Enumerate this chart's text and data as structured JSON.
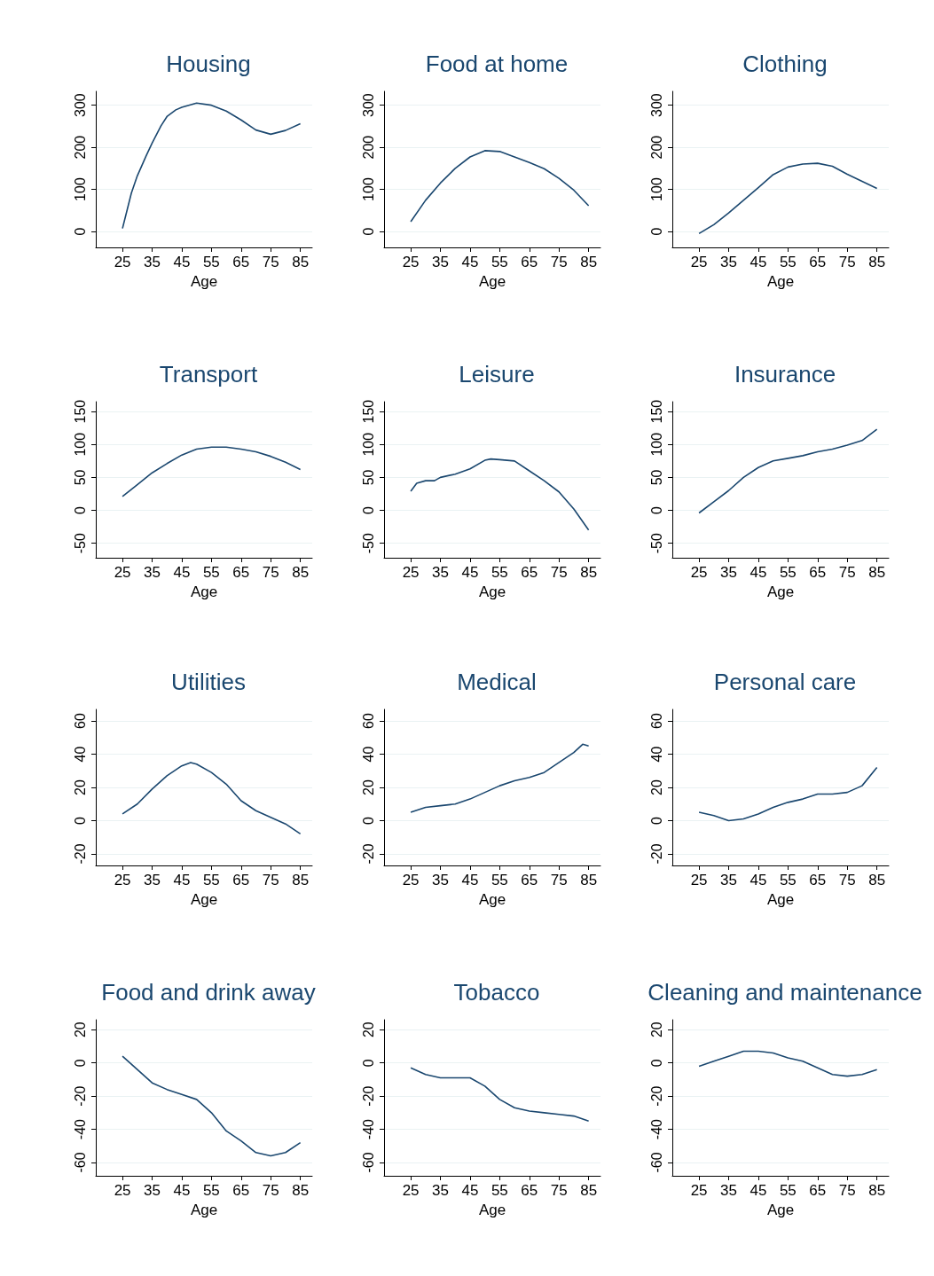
{
  "chart_data": [
    {
      "type": "line",
      "title": "Housing",
      "xlabel": "Age",
      "color": "#1a476f",
      "grid": "y",
      "x": [
        25,
        28,
        30,
        33,
        35,
        38,
        40,
        43,
        45,
        50,
        55,
        60,
        65,
        70,
        75,
        80,
        85
      ],
      "values": [
        7,
        91,
        132,
        180,
        210,
        251,
        273,
        289,
        295,
        305,
        300,
        286,
        265,
        241,
        231,
        240,
        256
      ],
      "xlim": [
        16,
        89
      ],
      "xticks": [
        25,
        35,
        45,
        55,
        65,
        75,
        85
      ],
      "ylim": [
        -38,
        333
      ],
      "yticks": [
        0,
        100,
        200,
        300
      ]
    },
    {
      "type": "line",
      "title": "Food at home",
      "xlabel": "Age",
      "color": "#1a476f",
      "grid": "y",
      "x": [
        25,
        30,
        35,
        40,
        45,
        50,
        55,
        60,
        65,
        70,
        75,
        80,
        85
      ],
      "values": [
        23,
        74,
        115,
        150,
        177,
        192,
        190,
        177,
        164,
        149,
        126,
        98,
        61
      ],
      "xlim": [
        16,
        89
      ],
      "xticks": [
        25,
        35,
        45,
        55,
        65,
        75,
        85
      ],
      "ylim": [
        -38,
        333
      ],
      "yticks": [
        0,
        100,
        200,
        300
      ]
    },
    {
      "type": "line",
      "title": "Clothing",
      "xlabel": "Age",
      "color": "#1a476f",
      "grid": "y",
      "x": [
        25,
        30,
        35,
        40,
        45,
        50,
        55,
        60,
        65,
        70,
        75,
        80,
        85
      ],
      "values": [
        -5,
        16,
        44,
        74,
        104,
        135,
        153,
        160,
        162,
        155,
        136,
        119,
        102
      ],
      "xlim": [
        16,
        89
      ],
      "xticks": [
        25,
        35,
        45,
        55,
        65,
        75,
        85
      ],
      "ylim": [
        -38,
        333
      ],
      "yticks": [
        0,
        100,
        200,
        300
      ]
    },
    {
      "type": "line",
      "title": "Transport",
      "xlabel": "Age",
      "color": "#1a476f",
      "grid": "y",
      "x": [
        25,
        30,
        35,
        40,
        45,
        50,
        55,
        60,
        65,
        70,
        75,
        80,
        85
      ],
      "values": [
        21,
        39,
        57,
        71,
        84,
        93,
        96,
        96,
        93,
        89,
        82,
        73,
        62
      ],
      "xlim": [
        16,
        89
      ],
      "xticks": [
        25,
        35,
        45,
        55,
        65,
        75,
        85
      ],
      "ylim": [
        -72,
        165
      ],
      "yticks": [
        -50,
        0,
        50,
        100,
        150
      ]
    },
    {
      "type": "line",
      "title": "Leisure",
      "xlabel": "Age",
      "color": "#1a476f",
      "grid": "y",
      "x": [
        25,
        27,
        30,
        33,
        35,
        40,
        45,
        50,
        52,
        55,
        60,
        65,
        70,
        75,
        80,
        85
      ],
      "values": [
        29,
        41,
        45,
        45,
        50,
        55,
        63,
        76,
        78,
        77,
        75,
        60,
        45,
        28,
        2,
        -30
      ],
      "xlim": [
        16,
        89
      ],
      "xticks": [
        25,
        35,
        45,
        55,
        65,
        75,
        85
      ],
      "ylim": [
        -72,
        165
      ],
      "yticks": [
        -50,
        0,
        50,
        100,
        150
      ]
    },
    {
      "type": "line",
      "title": "Insurance",
      "xlabel": "Age",
      "color": "#1a476f",
      "grid": "y",
      "x": [
        25,
        30,
        35,
        40,
        45,
        50,
        55,
        60,
        65,
        70,
        75,
        80,
        85
      ],
      "values": [
        -4,
        13,
        30,
        50,
        65,
        75,
        79,
        83,
        89,
        93,
        99,
        106,
        123
      ],
      "xlim": [
        16,
        89
      ],
      "xticks": [
        25,
        35,
        45,
        55,
        65,
        75,
        85
      ],
      "ylim": [
        -72,
        165
      ],
      "yticks": [
        -50,
        0,
        50,
        100,
        150
      ]
    },
    {
      "type": "line",
      "title": "Utilities",
      "xlabel": "Age",
      "color": "#1a476f",
      "grid": "y",
      "x": [
        25,
        30,
        35,
        40,
        45,
        48,
        50,
        55,
        60,
        65,
        70,
        75,
        80,
        85
      ],
      "values": [
        4,
        10,
        19,
        27,
        33,
        35,
        34,
        29,
        22,
        12,
        6,
        2,
        -2,
        -8
      ],
      "xlim": [
        16,
        89
      ],
      "xticks": [
        25,
        35,
        45,
        55,
        65,
        75,
        85
      ],
      "ylim": [
        -27,
        67
      ],
      "yticks": [
        -20,
        0,
        20,
        40,
        60
      ]
    },
    {
      "type": "line",
      "title": "Medical",
      "xlabel": "Age",
      "color": "#1a476f",
      "grid": "y",
      "x": [
        25,
        30,
        35,
        40,
        45,
        50,
        55,
        60,
        65,
        70,
        75,
        80,
        83,
        85
      ],
      "values": [
        5,
        8,
        9,
        10,
        13,
        17,
        21,
        24,
        26,
        29,
        35,
        41,
        46,
        45
      ],
      "xlim": [
        16,
        89
      ],
      "xticks": [
        25,
        35,
        45,
        55,
        65,
        75,
        85
      ],
      "ylim": [
        -27,
        67
      ],
      "yticks": [
        -20,
        0,
        20,
        40,
        60
      ]
    },
    {
      "type": "line",
      "title": "Personal care",
      "xlabel": "Age",
      "color": "#1a476f",
      "grid": "y",
      "x": [
        25,
        30,
        35,
        40,
        45,
        50,
        55,
        60,
        65,
        70,
        75,
        80,
        85
      ],
      "values": [
        5,
        3,
        0,
        1,
        4,
        8,
        11,
        13,
        16,
        16,
        17,
        21,
        32
      ],
      "xlim": [
        16,
        89
      ],
      "xticks": [
        25,
        35,
        45,
        55,
        65,
        75,
        85
      ],
      "ylim": [
        -27,
        67
      ],
      "yticks": [
        -20,
        0,
        20,
        40,
        60
      ]
    },
    {
      "type": "line",
      "title": "Food and drink away",
      "xlabel": "Age",
      "color": "#1a476f",
      "grid": "y",
      "x": [
        25,
        30,
        35,
        40,
        45,
        50,
        55,
        60,
        65,
        70,
        75,
        80,
        85
      ],
      "values": [
        4,
        -4,
        -12,
        -16,
        -19,
        -22,
        -30,
        -41,
        -47,
        -54,
        -56,
        -54,
        -48
      ],
      "xlim": [
        16,
        89
      ],
      "xticks": [
        25,
        35,
        45,
        55,
        65,
        75,
        85
      ],
      "ylim": [
        -68,
        26
      ],
      "yticks": [
        -60,
        -40,
        -20,
        0,
        20
      ]
    },
    {
      "type": "line",
      "title": "Tobacco",
      "xlabel": "Age",
      "color": "#1a476f",
      "grid": "y",
      "x": [
        25,
        30,
        35,
        40,
        45,
        50,
        55,
        60,
        65,
        70,
        75,
        80,
        85
      ],
      "values": [
        -3,
        -7,
        -9,
        -9,
        -9,
        -14,
        -22,
        -27,
        -29,
        -30,
        -31,
        -32,
        -35
      ],
      "xlim": [
        16,
        89
      ],
      "xticks": [
        25,
        35,
        45,
        55,
        65,
        75,
        85
      ],
      "ylim": [
        -68,
        26
      ],
      "yticks": [
        -60,
        -40,
        -20,
        0,
        20
      ]
    },
    {
      "type": "line",
      "title": "Cleaning and maintenance",
      "xlabel": "Age",
      "color": "#1a476f",
      "grid": "y",
      "x": [
        25,
        30,
        35,
        40,
        45,
        50,
        55,
        60,
        65,
        70,
        75,
        80,
        85
      ],
      "values": [
        -2,
        1,
        4,
        7,
        7,
        6,
        3,
        1,
        -3,
        -7,
        -8,
        -7,
        -4
      ],
      "xlim": [
        16,
        89
      ],
      "xticks": [
        25,
        35,
        45,
        55,
        65,
        75,
        85
      ],
      "ylim": [
        -68,
        26
      ],
      "yticks": [
        -60,
        -40,
        -20,
        0,
        20
      ]
    }
  ]
}
